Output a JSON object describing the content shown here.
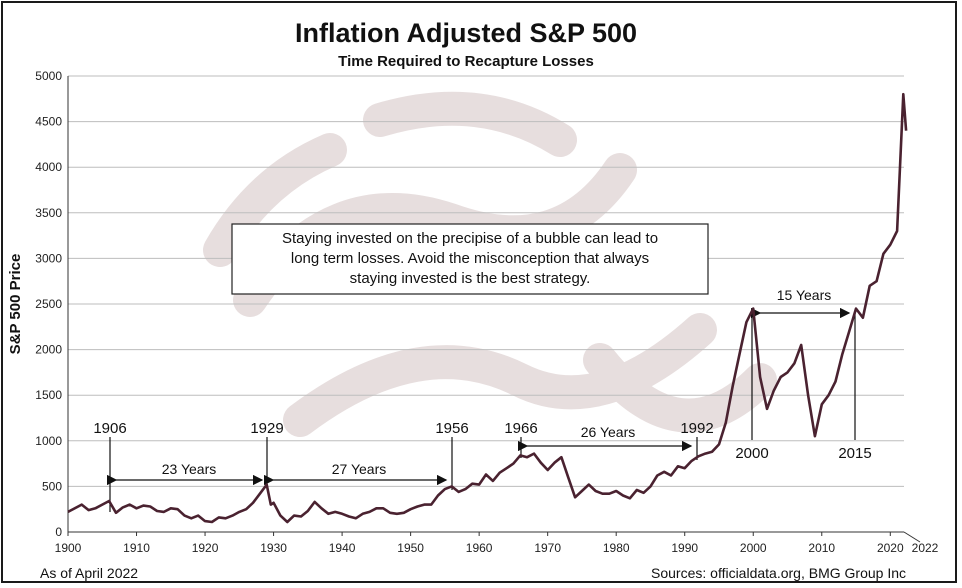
{
  "chart_data": {
    "type": "line",
    "title": "Inflation Adjusted S&P 500",
    "subtitle": "Time Required to Recapture Losses",
    "xlabel": "",
    "ylabel": "S&P 500 Price",
    "xlim": [
      1900,
      2022
    ],
    "ylim": [
      0,
      5000
    ],
    "x_ticks": [
      "1900",
      "1910",
      "1920",
      "1930",
      "1940",
      "1950",
      "1960",
      "1970",
      "1980",
      "1990",
      "2000",
      "2010",
      "2020",
      "2022"
    ],
    "y_ticks": [
      "0",
      "500",
      "1000",
      "1500",
      "2000",
      "2500",
      "3000",
      "3500",
      "4000",
      "4500",
      "5000"
    ],
    "grid": true,
    "line_color": "#4a2230",
    "series": [
      {
        "x": [
          1900,
          1902,
          1903,
          1904,
          1905,
          1906,
          1907,
          1908,
          1909,
          1910,
          1911,
          1912,
          1913,
          1914,
          1915,
          1916,
          1917,
          1918,
          1919,
          1920,
          1921,
          1922,
          1923,
          1924,
          1925,
          1926,
          1927,
          1928,
          1929,
          1929.6,
          1930,
          1931,
          1932,
          1933,
          1934,
          1935,
          1936,
          1937,
          1938,
          1939,
          1940,
          1941,
          1942,
          1943,
          1944,
          1945,
          1946,
          1947,
          1948,
          1949,
          1950,
          1951,
          1952,
          1953,
          1954,
          1955,
          1956,
          1957,
          1958,
          1959,
          1960,
          1961,
          1962,
          1963,
          1964,
          1965,
          1966,
          1967,
          1968,
          1969,
          1970,
          1971,
          1972,
          1973,
          1974,
          1975,
          1976,
          1977,
          1978,
          1979,
          1980,
          1981,
          1982,
          1983,
          1984,
          1985,
          1986,
          1987,
          1988,
          1989,
          1990,
          1991,
          1992,
          1993,
          1994,
          1995,
          1996,
          1997,
          1998,
          1999,
          2000,
          2001,
          2002,
          2003,
          2004,
          2005,
          2006,
          2007,
          2008,
          2009,
          2010,
          2011,
          2012,
          2013,
          2014,
          2015,
          2016,
          2017,
          2018,
          2019,
          2020,
          2021,
          2021.9,
          2022.3
        ],
        "y": [
          220,
          300,
          240,
          260,
          300,
          340,
          210,
          270,
          300,
          260,
          290,
          280,
          230,
          220,
          260,
          250,
          180,
          150,
          180,
          120,
          110,
          160,
          150,
          180,
          220,
          250,
          320,
          420,
          520,
          300,
          320,
          180,
          110,
          180,
          170,
          230,
          330,
          260,
          200,
          220,
          200,
          170,
          150,
          200,
          220,
          260,
          260,
          210,
          200,
          210,
          250,
          280,
          300,
          300,
          400,
          470,
          500,
          440,
          470,
          530,
          520,
          630,
          560,
          650,
          700,
          750,
          840,
          820,
          860,
          760,
          680,
          760,
          820,
          600,
          380,
          450,
          520,
          450,
          420,
          420,
          450,
          400,
          370,
          460,
          430,
          500,
          620,
          660,
          620,
          720,
          700,
          780,
          830,
          860,
          880,
          960,
          1200,
          1600,
          1950,
          2300,
          2450,
          1700,
          1350,
          1550,
          1700,
          1750,
          1850,
          2050,
          1500,
          1050,
          1400,
          1500,
          1650,
          1950,
          2200,
          2450,
          2350,
          2700,
          2750,
          3050,
          3150,
          3300,
          4800,
          4400
        ]
      }
    ],
    "annotations": {
      "callout": [
        "Staying invested on the precipise of a bubble can lead to",
        "long term losses.  Avoid the misconception that always",
        "staying invested is the best strategy."
      ],
      "year_labels": [
        "1906",
        "1929",
        "1956",
        "1966",
        "1992",
        "2000",
        "2015"
      ],
      "spans": [
        "23 Years",
        "27 Years",
        "26 Years",
        "15 Years"
      ]
    },
    "footer_left": "As of April 2022",
    "footer_right": "Sources: officialdata.org, BMG Group Inc"
  }
}
